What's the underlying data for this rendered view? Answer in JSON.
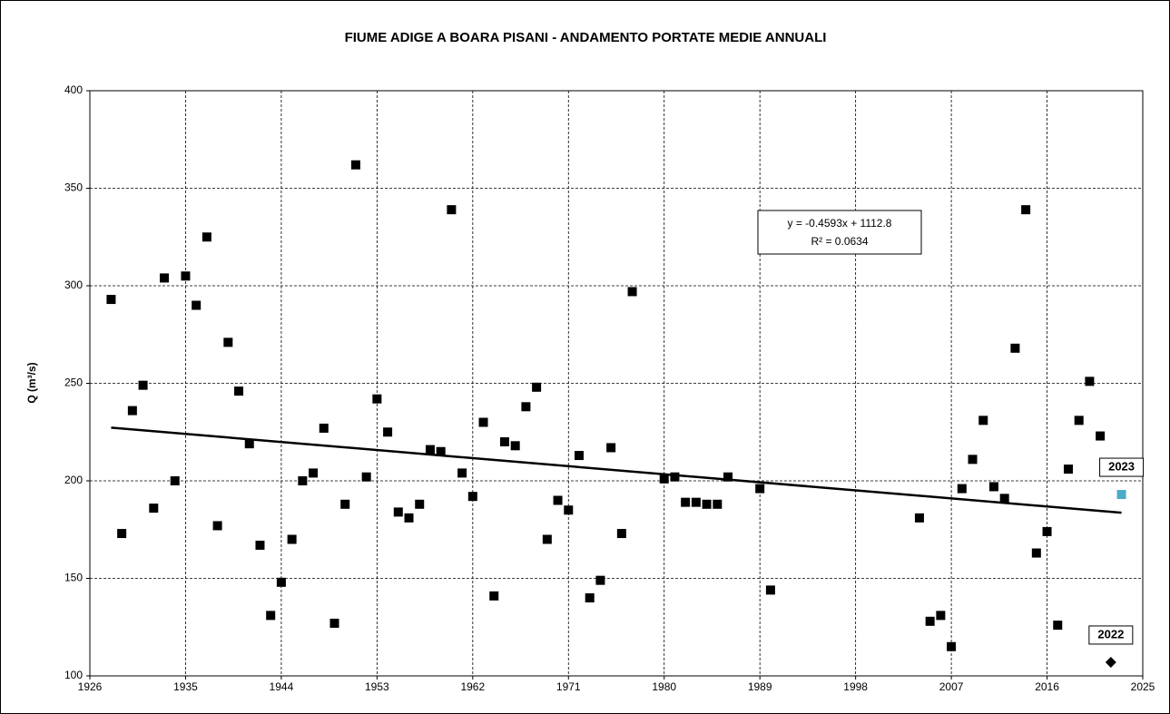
{
  "chart_data": {
    "type": "scatter",
    "title": "FIUME ADIGE A BOARA PISANI - ANDAMENTO PORTATE MEDIE ANNUALI",
    "y_label": "Q (m³/s)",
    "xlim": [
      1926,
      2025
    ],
    "xticks": [
      1926,
      1935,
      1944,
      1953,
      1962,
      1971,
      1980,
      1989,
      1998,
      2007,
      2016,
      2025
    ],
    "ylim": [
      100,
      400
    ],
    "yticks": [
      100,
      150,
      200,
      250,
      300,
      350,
      400
    ],
    "grid": true,
    "series": [
      {
        "color": "#000000",
        "marker": "square",
        "x": [
          1928,
          1929,
          1930,
          1931,
          1932,
          1933,
          1934,
          1935,
          1936,
          1937,
          1938,
          1939,
          1940,
          1941,
          1942,
          1943,
          1944,
          1945,
          1946,
          1947,
          1948,
          1949,
          1950,
          1951,
          1952,
          1953,
          1954,
          1955,
          1956,
          1957,
          1958,
          1959,
          1960,
          1961,
          1962,
          1963,
          1964,
          1965,
          1966,
          1967,
          1968,
          1969,
          1970,
          1971,
          1972,
          1973,
          1974,
          1975,
          1976,
          1977,
          1980,
          1981,
          1982,
          1983,
          1984,
          1985,
          1986,
          1989,
          1990,
          2004,
          2005,
          2006,
          2007,
          2008,
          2009,
          2010,
          2011,
          2012,
          2013,
          2014,
          2015,
          2016,
          2017,
          2018,
          2019,
          2020,
          2021
        ],
        "values": [
          293,
          173,
          236,
          249,
          186,
          304,
          200,
          305,
          290,
          325,
          177,
          271,
          246,
          219,
          167,
          131,
          148,
          170,
          200,
          204,
          227,
          127,
          188,
          362,
          202,
          242,
          225,
          184,
          181,
          188,
          216,
          215,
          339,
          204,
          192,
          230,
          141,
          220,
          218,
          238,
          248,
          170,
          190,
          185,
          213,
          140,
          149,
          217,
          173,
          297,
          201,
          202,
          189,
          189,
          188,
          188,
          202,
          196,
          144,
          181,
          128,
          131,
          115,
          196,
          211,
          231,
          197,
          191,
          268,
          339,
          163,
          174,
          126,
          206,
          231,
          251,
          223
        ]
      },
      {
        "color": "#000000",
        "marker": "diamond",
        "x": [
          2022
        ],
        "values": [
          107
        ]
      },
      {
        "color": "#4bacc6",
        "marker": "square",
        "x": [
          2023
        ],
        "values": [
          193
        ]
      }
    ],
    "trendline": {
      "slope": -0.4593,
      "intercept": 1112.8,
      "x": [
        1928,
        2023
      ],
      "color": "#000000"
    },
    "annotations": [
      {
        "text": "y = -0.4593x + 1112.8"
      },
      {
        "text": "R² = 0.0634"
      },
      {
        "text": "2022"
      },
      {
        "text": "2023"
      }
    ]
  }
}
